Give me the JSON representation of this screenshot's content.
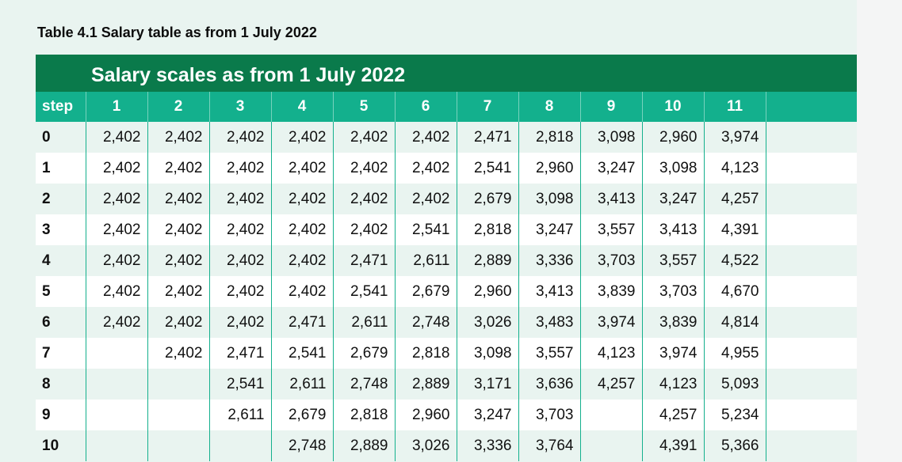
{
  "caption": "Table 4.1 Salary table as from 1 July 2022",
  "banner_title": "Salary scales as from 1 July 2022",
  "step_header": "step",
  "scales": [
    "1",
    "2",
    "3",
    "4",
    "5",
    "6",
    "7",
    "8",
    "9",
    "10",
    "11"
  ],
  "rows": [
    {
      "step": "0",
      "values": [
        "2,402",
        "2,402",
        "2,402",
        "2,402",
        "2,402",
        "2,402",
        "2,471",
        "2,818",
        "3,098",
        "2,960",
        "3,974"
      ]
    },
    {
      "step": "1",
      "values": [
        "2,402",
        "2,402",
        "2,402",
        "2,402",
        "2,402",
        "2,402",
        "2,541",
        "2,960",
        "3,247",
        "3,098",
        "4,123"
      ]
    },
    {
      "step": "2",
      "values": [
        "2,402",
        "2,402",
        "2,402",
        "2,402",
        "2,402",
        "2,402",
        "2,679",
        "3,098",
        "3,413",
        "3,247",
        "4,257"
      ]
    },
    {
      "step": "3",
      "values": [
        "2,402",
        "2,402",
        "2,402",
        "2,402",
        "2,402",
        "2,541",
        "2,818",
        "3,247",
        "3,557",
        "3,413",
        "4,391"
      ]
    },
    {
      "step": "4",
      "values": [
        "2,402",
        "2,402",
        "2,402",
        "2,402",
        "2,471",
        "2,611",
        "2,889",
        "3,336",
        "3,703",
        "3,557",
        "4,522"
      ]
    },
    {
      "step": "5",
      "values": [
        "2,402",
        "2,402",
        "2,402",
        "2,402",
        "2,541",
        "2,679",
        "2,960",
        "3,413",
        "3,839",
        "3,703",
        "4,670"
      ]
    },
    {
      "step": "6",
      "values": [
        "2,402",
        "2,402",
        "2,402",
        "2,471",
        "2,611",
        "2,748",
        "3,026",
        "3,483",
        "3,974",
        "3,839",
        "4,814"
      ]
    },
    {
      "step": "7",
      "values": [
        "",
        "2,402",
        "2,471",
        "2,541",
        "2,679",
        "2,818",
        "3,098",
        "3,557",
        "4,123",
        "3,974",
        "4,955"
      ]
    },
    {
      "step": "8",
      "values": [
        "",
        "",
        "2,541",
        "2,611",
        "2,748",
        "2,889",
        "3,171",
        "3,636",
        "4,257",
        "4,123",
        "5,093"
      ]
    },
    {
      "step": "9",
      "values": [
        "",
        "",
        "2,611",
        "2,679",
        "2,818",
        "2,960",
        "3,247",
        "3,703",
        "",
        "4,257",
        "5,234"
      ]
    },
    {
      "step": "10",
      "values": [
        "",
        "",
        "",
        "2,748",
        "2,889",
        "3,026",
        "3,336",
        "3,764",
        "",
        "4,391",
        "5,366"
      ]
    }
  ]
}
